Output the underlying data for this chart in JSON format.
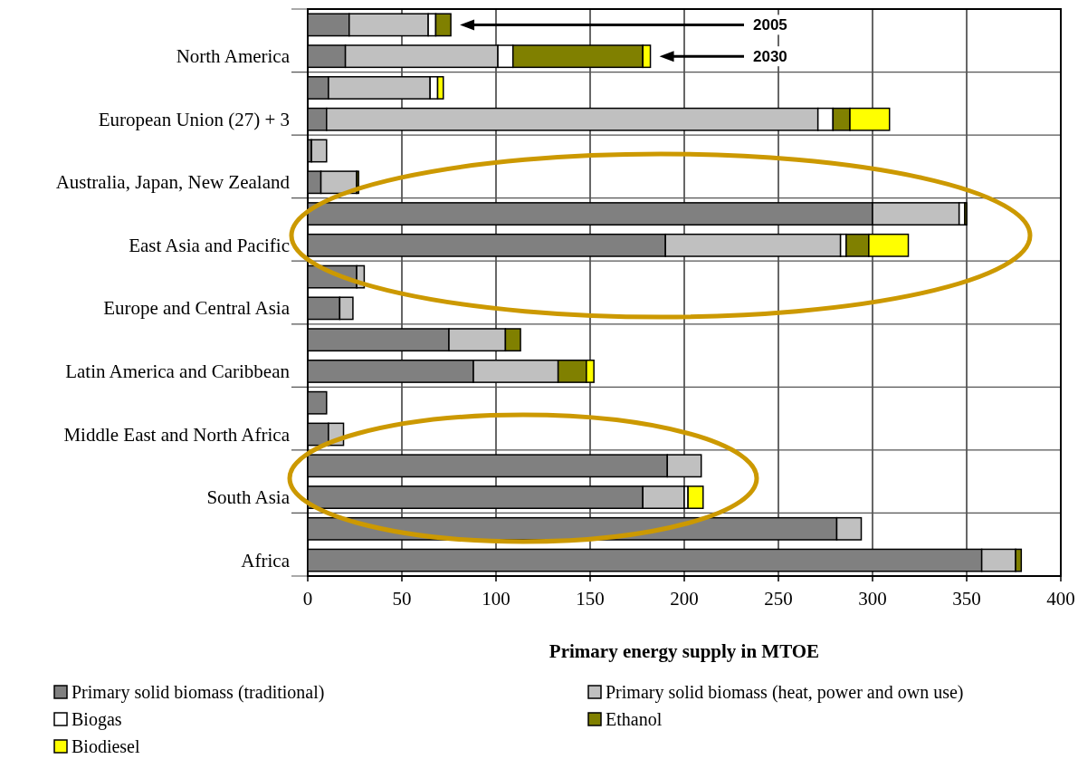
{
  "chart_data": {
    "type": "bar",
    "orientation": "horizontal",
    "stacked": true,
    "xlabel": "Primary energy supply in MTOE",
    "categories": [
      null,
      "North America",
      null,
      "European Union (27) + 3",
      null,
      "Australia, Japan, New Zealand",
      null,
      "East Asia and Pacific",
      null,
      "Europe and Central Asia",
      null,
      "Latin America and Caribbean",
      null,
      "Middle East and North Africa",
      null,
      "South Asia",
      null,
      "Africa"
    ],
    "series": [
      {
        "name": "Primary solid biomass (traditional)",
        "color": "#808080",
        "values": [
          22,
          20,
          11,
          10,
          2,
          7,
          300,
          190,
          26,
          17,
          75,
          88,
          10,
          11,
          191,
          178,
          281,
          358
        ]
      },
      {
        "name": "Primary solid biomass (heat, power and own use)",
        "color": "#c0c0c0",
        "values": [
          42,
          81,
          54,
          261,
          8,
          19,
          46,
          93,
          4,
          7,
          30,
          45,
          0,
          8,
          18,
          22,
          13,
          18
        ]
      },
      {
        "name": "Biogas",
        "color": "#ffffff",
        "values": [
          4,
          8,
          4,
          8,
          0,
          null,
          3,
          3,
          0,
          0,
          0,
          0,
          0,
          0,
          0,
          2,
          0,
          0
        ]
      },
      {
        "name": "Ethanol",
        "color": "#808000",
        "values": [
          8,
          69,
          0,
          9,
          0,
          1,
          1,
          12,
          0,
          0,
          8,
          15,
          0,
          0,
          0,
          0,
          0,
          3
        ]
      },
      {
        "name": "Biodiesel",
        "color": "#ffff00",
        "values": [
          0,
          4,
          3,
          21,
          0,
          0,
          0,
          21,
          0,
          0,
          0,
          4,
          0,
          0,
          0,
          8,
          0,
          0
        ]
      }
    ],
    "xlim": [
      0,
      400
    ],
    "xticks": [
      0,
      50,
      100,
      150,
      200,
      250,
      300,
      350,
      400
    ],
    "grid": true,
    "legend": "bottom",
    "annotations": [
      "2005",
      "2030"
    ]
  }
}
